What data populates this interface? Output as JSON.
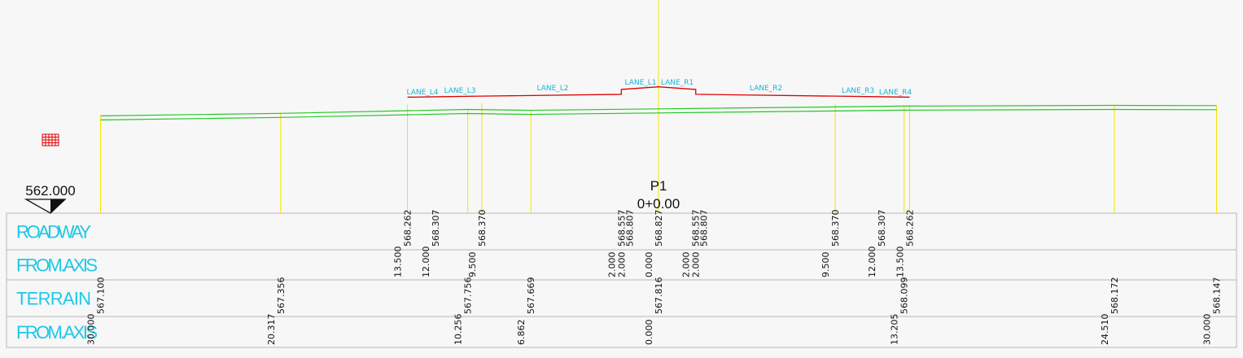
{
  "colors": {
    "background": "#f7f7f7",
    "axis_line": "#f4e400",
    "terrain_line": "#25c825",
    "roadway_line": "#e00000",
    "lane_label": "#16b6d6",
    "row_label": "#1ec8e6",
    "table_border": "#b7b7b7",
    "value_text": "#111111",
    "marker": "#e00000"
  },
  "icons": {
    "datum_marker": "triangle-down-icon",
    "block_marker": "red-block-icon"
  },
  "profile": {
    "datum_elevation": "562.000",
    "station_name": "P1",
    "station_chainage": "0+0.00",
    "lane_labels": [
      "LANE_L4",
      "LANE_L3",
      "LANE_L2",
      "LANE_L1",
      "LANE_R1",
      "LANE_R2",
      "LANE_R3",
      "LANE_R4"
    ]
  },
  "band": {
    "rows": [
      {
        "label": "ROADWAY"
      },
      {
        "label": "FROM.AXIS"
      },
      {
        "label": "TERRAIN"
      },
      {
        "label": "FROM.AXIS"
      }
    ]
  },
  "chart_data": {
    "type": "cross-section",
    "roadway": {
      "offsets": [
        -13.5,
        -12.0,
        -9.5,
        -2.0,
        0.0,
        2.0,
        9.5,
        12.0,
        13.5
      ],
      "elevations": [
        "568.262",
        "568.307",
        "568.370",
        "568.557",
        "568.827",
        "568.557",
        "568.370",
        "568.307",
        "568.262"
      ],
      "elevations_second": [
        "",
        "",
        "",
        "568.807",
        "",
        "568.807",
        "",
        "",
        ""
      ],
      "offset_labels": [
        "13.500",
        "12.000",
        "9.500",
        "2.000",
        "0.000",
        "2.000",
        "9.500",
        "12.000",
        "13.500"
      ],
      "offset_labels_second": [
        "",
        "",
        "",
        "2.000",
        "",
        "2.000",
        "",
        "",
        ""
      ]
    },
    "terrain": {
      "offsets": [
        -30.0,
        -20.317,
        -10.256,
        -6.862,
        0.0,
        13.205,
        24.51,
        30.0
      ],
      "elevations": [
        "567.100",
        "567.356",
        "567.756",
        "567.669",
        "567.816",
        "568.099",
        "568.172",
        "568.147"
      ],
      "offset_labels": [
        "30.000",
        "20.317",
        "10.256",
        "6.862",
        "0.000",
        "13.205",
        "24.510",
        "30.000"
      ]
    }
  }
}
